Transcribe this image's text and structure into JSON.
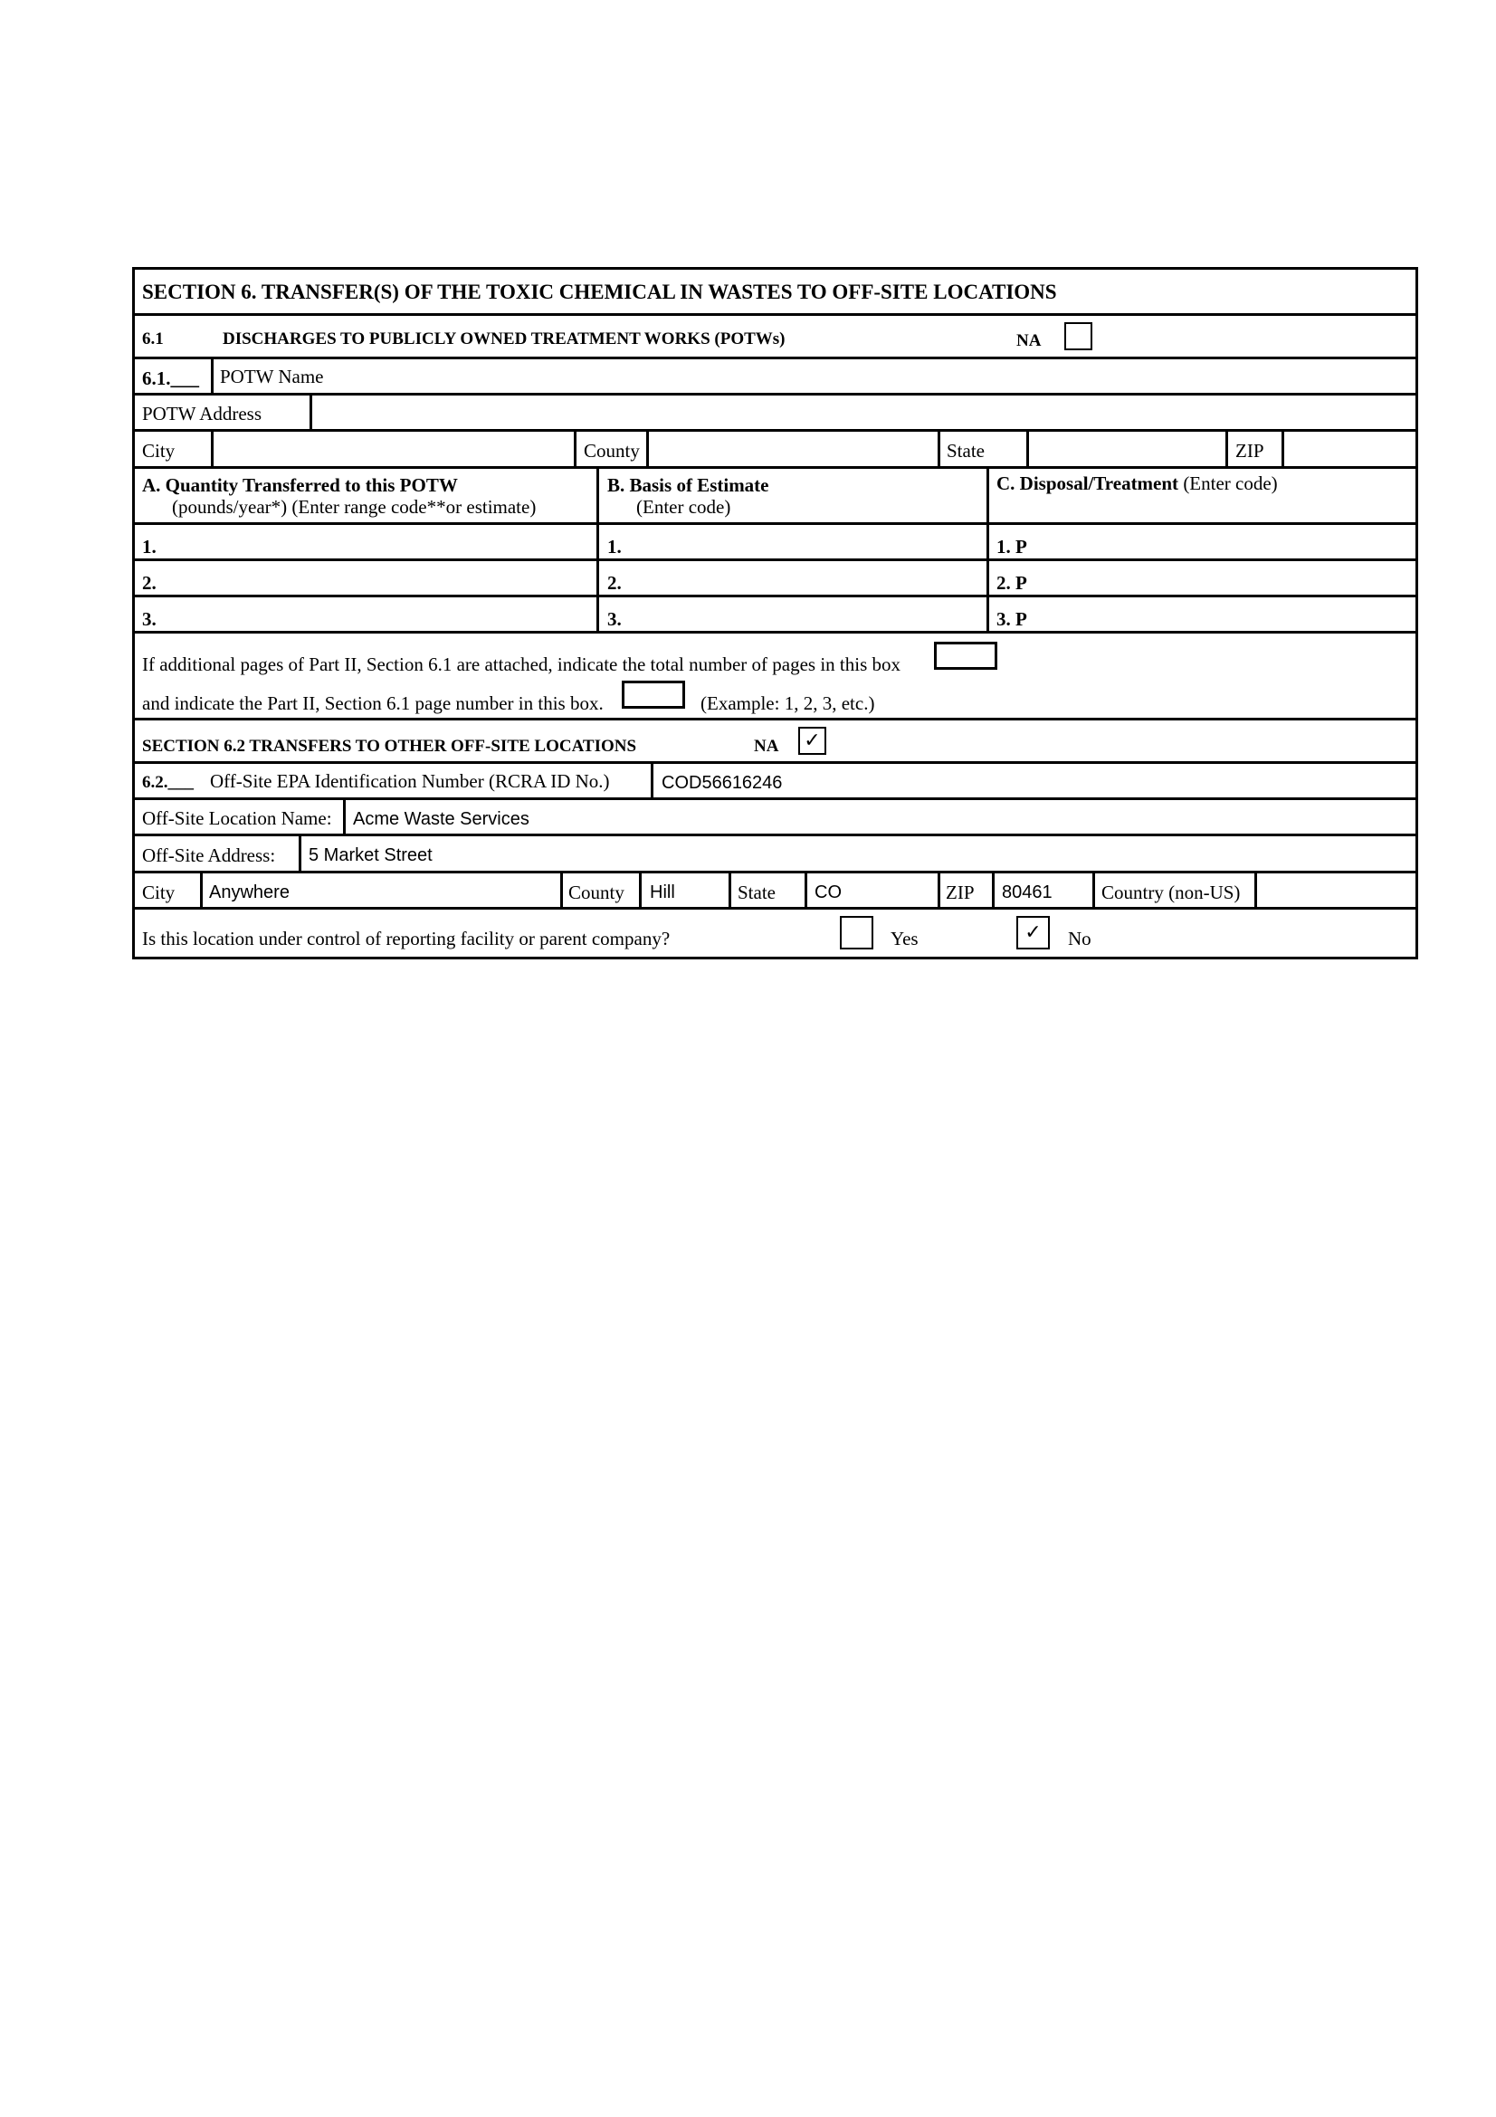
{
  "section6": {
    "title": "SECTION 6. TRANSFER(S) OF THE TOXIC CHEMICAL IN WASTES TO OFF-SITE LOCATIONS"
  },
  "s61": {
    "number": "6.1",
    "title": "DISCHARGES TO PUBLICLY OWNED TREATMENT WORKS (POTWs)",
    "na_label": "NA",
    "na_checked": false,
    "item_number": "6.1.___",
    "potw_name_label": "POTW Name",
    "potw_name_value": "",
    "potw_address_label": "POTW Address",
    "potw_address_value": "",
    "city_label": "City",
    "city_value": "",
    "county_label": "County",
    "county_value": "",
    "state_label": "State",
    "state_value": "",
    "zip_label": "ZIP",
    "zip_value": "",
    "col_a_title": "A. Quantity Transferred to this POTW",
    "col_a_sub": "(pounds/year*) (Enter range code**or estimate)",
    "col_b_title": "B. Basis of Estimate",
    "col_b_sub": "(Enter code)",
    "col_c_title": "C. Disposal/Treatment",
    "col_c_sub": "(Enter code)",
    "rows": [
      {
        "a": "1.",
        "b": "1.",
        "c": "1. P"
      },
      {
        "a": "2.",
        "b": "2.",
        "c": "2. P"
      },
      {
        "a": "3.",
        "b": "3.",
        "c": "3. P"
      }
    ],
    "pages_text_1": "If additional pages of Part II, Section 6.1 are attached, indicate the total number of pages in this box",
    "pages_text_2": "and indicate the Part II, Section 6.1 page number in this box.",
    "pages_example": "(Example: 1, 2, 3, etc.)"
  },
  "s62": {
    "title": "SECTION 6.2  TRANSFERS TO OTHER OFF-SITE LOCATIONS",
    "na_label": "NA",
    "na_checked": true,
    "item_number": "6.2.___",
    "epa_id_label": "Off-Site EPA Identification Number (RCRA ID No.)",
    "epa_id_value": "COD56616246",
    "location_name_label": "Off-Site Location Name:",
    "location_name_value": "Acme Waste Services",
    "address_label": "Off-Site Address:",
    "address_value": "5 Market Street",
    "city_label": "City",
    "city_value": "Anywhere",
    "county_label": "County",
    "county_value": "Hill",
    "state_label": "State",
    "state_value": "CO",
    "zip_label": "ZIP",
    "zip_value": "80461",
    "country_label": "Country (non-US)",
    "country_value": "",
    "control_question": "Is this location under control of reporting facility or parent company?",
    "yes_label": "Yes",
    "yes_checked": false,
    "no_label": "No",
    "no_checked": true,
    "check_glyph": "✓"
  }
}
